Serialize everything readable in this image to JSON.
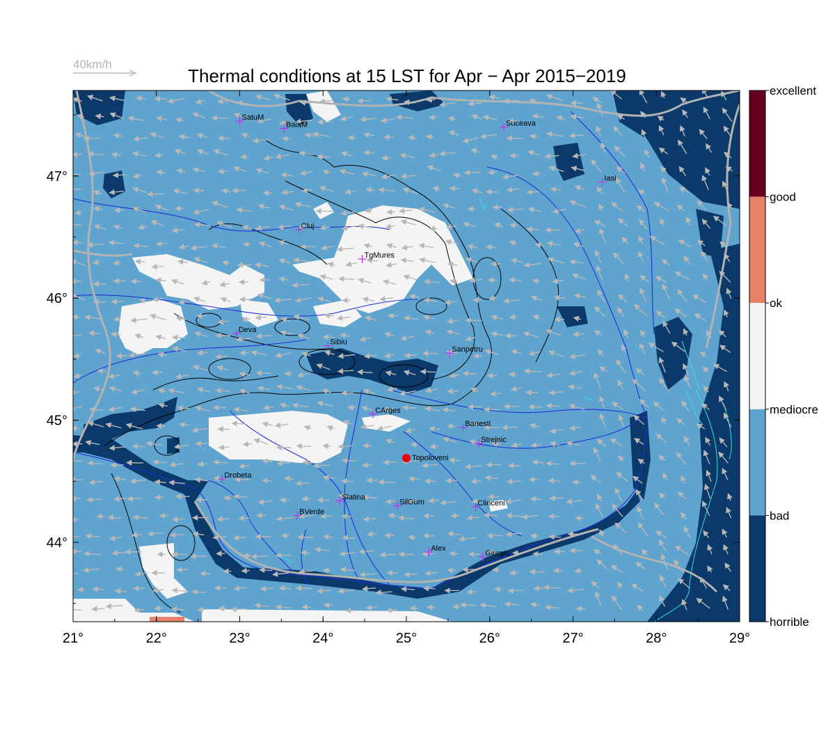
{
  "title": "Thermal conditions at 15 LST for Apr − Apr  2015−2019",
  "reference_vector": {
    "label": "40km/h",
    "speed_kmh": 40
  },
  "axes": {
    "x_ticks": [
      "21°",
      "22°",
      "23°",
      "24°",
      "25°",
      "26°",
      "27°",
      "28°",
      "29°"
    ],
    "y_ticks": [
      "44°",
      "45°",
      "46°",
      "47°"
    ],
    "lon_range": [
      21,
      29
    ],
    "lat_range": [
      43.35,
      47.7
    ]
  },
  "colorbar": {
    "levels": [
      {
        "label": "excellent",
        "color": "#67001f"
      },
      {
        "label": "good",
        "color": "#e58267"
      },
      {
        "label": "ok",
        "color": "#f4f4f4"
      },
      {
        "label": "mediocre",
        "color": "#5ea4cf"
      },
      {
        "label": "bad",
        "color": "#5ea4cf"
      },
      {
        "label": "horrible",
        "color": "#0b3a6a"
      }
    ]
  },
  "colors": {
    "bad": "#5ea4cf",
    "horrible": "#0b3a6a",
    "ok": "#f4f4f4",
    "good": "#e58267",
    "excellent": "#67001f",
    "wind_arrow": "#b8b8b8",
    "rivers": "#1f2fd8",
    "borders": "#b3b3b3",
    "city_marker": "#c030e8",
    "highlight": "#ee0000",
    "coast": "#33e0e8"
  },
  "cities": [
    {
      "name": "SatuM",
      "lon": 23.0,
      "lat": 47.45
    },
    {
      "name": "BaiaM",
      "lon": 23.53,
      "lat": 47.39
    },
    {
      "name": "Suceava",
      "lon": 26.17,
      "lat": 47.4
    },
    {
      "name": "Iasi",
      "lon": 27.35,
      "lat": 46.95
    },
    {
      "name": "Cluj",
      "lon": 23.71,
      "lat": 46.56
    },
    {
      "name": "TgMures",
      "lon": 24.47,
      "lat": 46.32
    },
    {
      "name": "Deva",
      "lon": 22.96,
      "lat": 45.71
    },
    {
      "name": "Sibiu",
      "lon": 24.06,
      "lat": 45.61
    },
    {
      "name": "Sanpetru",
      "lon": 25.52,
      "lat": 45.55
    },
    {
      "name": "CArges",
      "lon": 24.6,
      "lat": 45.05
    },
    {
      "name": "Banesti",
      "lon": 25.68,
      "lat": 44.94
    },
    {
      "name": "Strejnic",
      "lon": 25.87,
      "lat": 44.81
    },
    {
      "name": "Drobeta",
      "lon": 22.79,
      "lat": 44.52
    },
    {
      "name": "Slatina",
      "lon": 24.2,
      "lat": 44.34
    },
    {
      "name": "SilGum",
      "lon": 24.89,
      "lat": 44.3
    },
    {
      "name": "Clinceni",
      "lon": 25.83,
      "lat": 44.29
    },
    {
      "name": "BVerde",
      "lon": 23.69,
      "lat": 44.22
    },
    {
      "name": "Alex",
      "lon": 25.27,
      "lat": 43.92
    },
    {
      "name": "Giurgiu",
      "lon": 25.92,
      "lat": 43.88
    }
  ],
  "highlight_site": {
    "name": "Topoloveni",
    "lon": 25.0,
    "lat": 44.69
  }
}
